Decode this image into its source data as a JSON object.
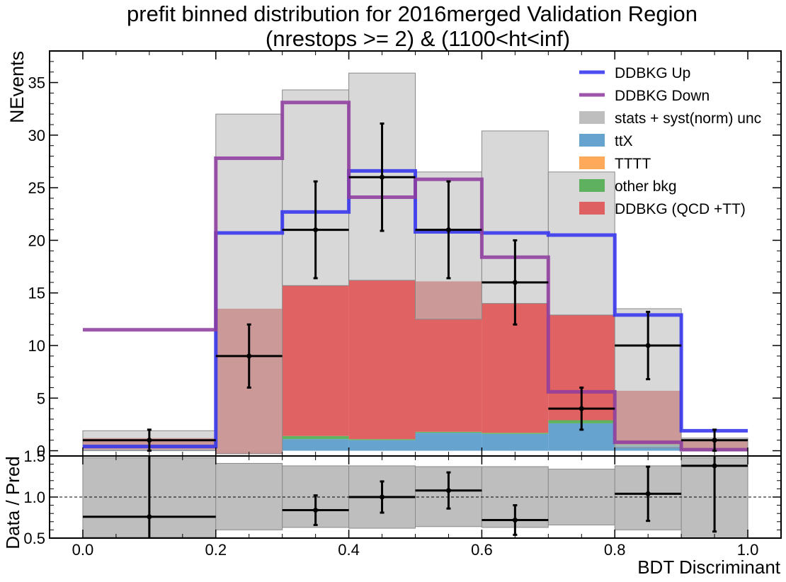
{
  "chart_data": {
    "type": "bar",
    "title_line1": "prefit binned distribution for 2016merged Validation Region",
    "title_line2": "(nrestops >= 2) & (1100<ht<inf)",
    "xlabel": "BDT Discriminant",
    "ylabel": "NEvents",
    "ratio_ylabel": "Data / Pred",
    "xlim": [
      -0.05,
      1.05
    ],
    "ylim": [
      -0.5,
      38
    ],
    "ratio_ylim": [
      0.5,
      1.5
    ],
    "x_ticks": [
      0.0,
      0.2,
      0.4,
      0.6,
      0.8,
      1.0
    ],
    "x_tick_labels": [
      "0.0",
      "0.2",
      "0.4",
      "0.6",
      "0.8",
      "1.0"
    ],
    "y_ticks": [
      0,
      5,
      10,
      15,
      20,
      25,
      30,
      35
    ],
    "y_tick_labels": [
      "0",
      "5",
      "10",
      "15",
      "20",
      "25",
      "30",
      "35"
    ],
    "ratio_y_ticks": [
      0.5,
      1.0,
      1.5
    ],
    "ratio_y_tick_labels": [
      "0.5",
      "1.0",
      "1.5"
    ],
    "bin_edges": [
      0.0,
      0.2,
      0.3,
      0.4,
      0.5,
      0.6,
      0.7,
      0.8,
      0.9,
      1.0
    ],
    "stack": [
      {
        "name": "ttX",
        "color": "#5b9ccb",
        "values": [
          0.1,
          0.0,
          1.1,
          1.0,
          1.7,
          1.6,
          2.6,
          0.5,
          0.1
        ]
      },
      {
        "name": "TTTT",
        "color": "#ffa24f",
        "values": [
          0.0,
          0.0,
          0.0,
          0.0,
          0.0,
          0.0,
          0.0,
          0.0,
          0.0
        ]
      },
      {
        "name": "other bkg",
        "color": "#54ad54",
        "values": [
          0.0,
          -0.3,
          0.3,
          0.1,
          0.1,
          0.1,
          0.3,
          0.1,
          0.0
        ]
      },
      {
        "name": "DDBKG (QCD +TT)",
        "color": "#de5656",
        "values": [
          1.1,
          13.8,
          14.3,
          15.1,
          14.3,
          12.3,
          10.0,
          5.1,
          0.8
        ]
      }
    ],
    "band": {
      "name": "stats + syst(norm) unc",
      "color": "#bebebe",
      "low": [
        0.0,
        -0.3,
        15.7,
        16.2,
        12.5,
        14.0,
        12.9,
        0.3,
        0.0
      ],
      "high": [
        1.9,
        32.0,
        34.3,
        35.9,
        26.5,
        30.4,
        26.5,
        13.5,
        1.2
      ]
    },
    "syst_lines": [
      {
        "name": "DDBKG Up",
        "color": "#3333ee",
        "values": [
          0.4,
          20.7,
          22.7,
          26.6,
          20.8,
          20.7,
          20.5,
          12.9,
          1.9
        ]
      },
      {
        "name": "DDBKG Down",
        "color": "#8e3e9e",
        "values": [
          11.5,
          27.8,
          33.1,
          24.1,
          25.8,
          18.4,
          5.6,
          0.8,
          0.1
        ]
      }
    ],
    "data_points": {
      "x": [
        0.1,
        0.25,
        0.35,
        0.45,
        0.55,
        0.65,
        0.75,
        0.85,
        0.95
      ],
      "xerr": [
        0.1,
        0.05,
        0.05,
        0.05,
        0.05,
        0.05,
        0.05,
        0.05,
        0.05
      ],
      "y": [
        1,
        9,
        21,
        26,
        21,
        16,
        4,
        10,
        1
      ],
      "yerr_low": [
        1.0,
        3.0,
        4.6,
        5.1,
        4.6,
        4.0,
        2.0,
        3.2,
        1.0
      ],
      "yerr_high": [
        1.0,
        3.0,
        4.6,
        5.1,
        4.6,
        4.0,
        2.0,
        3.2,
        1.0
      ]
    },
    "ratio": {
      "band_low": [
        0.51,
        0.6,
        0.63,
        0.62,
        0.64,
        0.63,
        0.66,
        0.6,
        0.5
      ],
      "band_high": [
        1.48,
        1.41,
        1.38,
        1.38,
        1.37,
        1.37,
        1.34,
        1.38,
        1.48
      ],
      "points_x": [
        0.1,
        0.35,
        0.45,
        0.55,
        0.65,
        0.85,
        0.95
      ],
      "points_xerr": [
        0.1,
        0.05,
        0.05,
        0.05,
        0.05,
        0.05,
        0.05
      ],
      "points_y": [
        0.76,
        0.84,
        1.0,
        1.08,
        0.72,
        1.04,
        1.38
      ],
      "points_err": [
        0.76,
        0.18,
        0.19,
        0.22,
        0.18,
        0.33,
        0.8
      ]
    },
    "legend": {
      "placement": "top-right",
      "entries": [
        {
          "label": "DDBKG Up",
          "kind": "line",
          "color": "#3333ee"
        },
        {
          "label": "DDBKG Down",
          "kind": "line",
          "color": "#8e3e9e"
        },
        {
          "label": "stats + syst(norm) unc",
          "kind": "box",
          "color": "#bebebe"
        },
        {
          "label": "ttX",
          "kind": "box",
          "color": "#5b9ccb"
        },
        {
          "label": "TTTT",
          "kind": "box",
          "color": "#ffa24f"
        },
        {
          "label": "other bkg",
          "kind": "box",
          "color": "#54ad54"
        },
        {
          "label": "DDBKG (QCD +TT)",
          "kind": "box",
          "color": "#de5656"
        }
      ]
    }
  }
}
